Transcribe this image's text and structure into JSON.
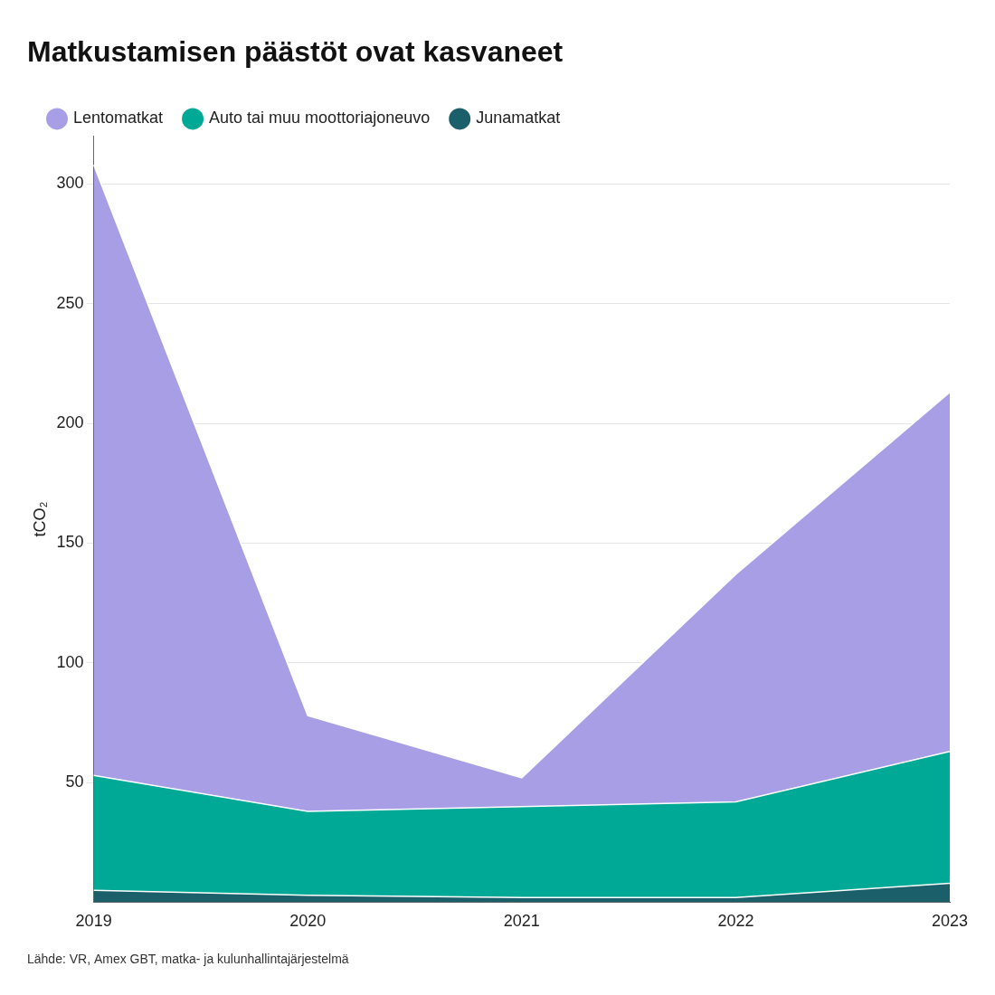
{
  "chart_data": {
    "type": "area",
    "stacked": true,
    "title": "Matkustamisen päästöt ovat kasvaneet",
    "ylabel": "tCO₂",
    "annotations": [
      "Lähde: VR, Amex GBT, matka- ja kulunhallintajärjestelmä"
    ],
    "categories": [
      "2019",
      "2020",
      "2021",
      "2022",
      "2023"
    ],
    "series": [
      {
        "name": "Junamatkat",
        "color": "#1a5f6a",
        "values": [
          5,
          3,
          2,
          2,
          8
        ]
      },
      {
        "name": "Auto tai muu\nmoottoriajoneuvo",
        "color": "#00a896",
        "values": [
          48,
          35,
          38,
          40,
          55
        ]
      },
      {
        "name": "Lentomatkat",
        "color": "#a89ee6",
        "values": [
          255,
          40,
          12,
          95,
          150
        ]
      }
    ],
    "ylim": [
      0,
      320
    ],
    "yticks": [
      50,
      100,
      150,
      200,
      250,
      300
    ],
    "grid": true,
    "legend": "top-left"
  }
}
